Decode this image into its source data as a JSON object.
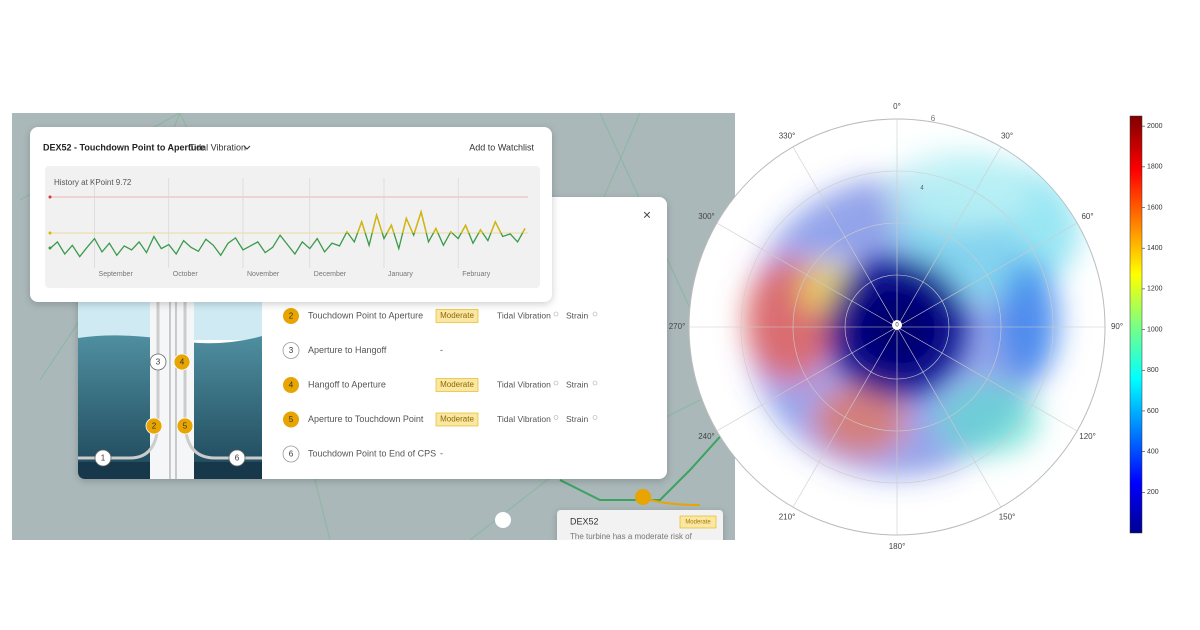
{
  "header": {
    "title": "DEX52 - Touchdown Point to Aperture",
    "metric": "Tidal Vibration",
    "action": "Add to Watchlist"
  },
  "chart_data": {
    "type": "line",
    "title": "History at KPoint 9.72",
    "values": [
      20,
      30,
      12,
      25,
      8,
      22,
      35,
      15,
      28,
      10,
      24,
      18,
      30,
      14,
      38,
      20,
      26,
      12,
      32,
      22,
      16,
      34,
      25,
      10,
      28,
      36,
      18,
      24,
      30,
      14,
      22,
      40,
      26,
      12,
      30,
      20,
      35,
      15,
      28,
      24,
      45,
      30,
      60,
      25,
      70,
      35,
      55,
      20,
      65,
      40,
      75,
      30,
      50,
      25,
      45,
      35,
      55,
      28,
      48,
      32,
      60,
      38,
      42,
      30,
      50
    ],
    "ylim": [
      0,
      100
    ],
    "xlim": [
      0,
      64
    ],
    "xticks": [
      {
        "value": 6,
        "label": "September"
      },
      {
        "value": 16,
        "label": "October"
      },
      {
        "value": 26,
        "label": "November"
      },
      {
        "value": 35,
        "label": "December"
      },
      {
        "value": 45,
        "label": "January"
      },
      {
        "value": 55,
        "label": "February"
      }
    ],
    "colors": {
      "normal": "#3a9a4a",
      "elevated": "#e0b400"
    }
  },
  "segments": [
    {
      "number": "2",
      "name": "Touchdown Point to Aperture",
      "status": "Moderate",
      "tags": [
        "Tidal Vibration",
        "Strain"
      ]
    },
    {
      "number": "3",
      "name": "Aperture to Hangoff",
      "status": "-"
    },
    {
      "number": "4",
      "name": "Hangoff to Aperture",
      "status": "Moderate",
      "tags": [
        "Tidal Vibration",
        "Strain"
      ]
    },
    {
      "number": "5",
      "name": "Aperture to Touchdown Point",
      "status": "Moderate",
      "tags": [
        "Tidal Vibration",
        "Strain"
      ]
    },
    {
      "number": "6",
      "name": "Touchdown Point to End of CPS",
      "status": "-"
    }
  ],
  "diagram": {
    "nodes": [
      "1",
      "2",
      "3",
      "4",
      "5",
      "6"
    ]
  },
  "map_tooltip": {
    "title": "DEX52",
    "status": "Moderate",
    "text": "The turbine has a moderate risk of"
  },
  "polar": {
    "angle_labels": [
      "0°",
      "30°",
      "60°",
      "90°",
      "120°",
      "150°",
      "180°",
      "210°",
      "240°",
      "270°",
      "300°",
      "330°"
    ],
    "radial_labels": [
      "6",
      "4"
    ],
    "center_label": "0",
    "colorbar": {
      "clim": [
        0,
        2050
      ],
      "ticks": [
        200,
        400,
        600,
        800,
        1000,
        1200,
        1400,
        1600,
        1800,
        2000
      ]
    }
  }
}
